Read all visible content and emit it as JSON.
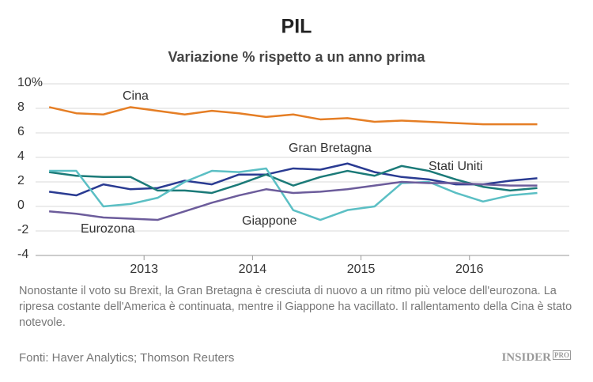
{
  "chart_data": {
    "type": "line",
    "title": "PIL",
    "subtitle": "Variazione % rispetto a un anno prima",
    "x": [
      2012.125,
      2012.375,
      2012.625,
      2012.875,
      2013.125,
      2013.375,
      2013.625,
      2013.875,
      2014.125,
      2014.375,
      2014.625,
      2014.875,
      2015.125,
      2015.375,
      2015.625,
      2015.875,
      2016.125,
      2016.375,
      2016.625
    ],
    "xlim": [
      2012,
      2016.92
    ],
    "xticks": [
      2013,
      2014,
      2015,
      2016
    ],
    "ylim": [
      -4,
      10
    ],
    "yticks": [
      -4,
      -2,
      0,
      2,
      4,
      6,
      8,
      {
        "value": 10,
        "label": "10%"
      }
    ],
    "grid": true,
    "series": [
      {
        "name": "Cina",
        "color": "#e57e25",
        "values": [
          8.1,
          7.6,
          7.5,
          8.1,
          7.8,
          7.5,
          7.8,
          7.6,
          7.3,
          7.5,
          7.1,
          7.2,
          6.9,
          7.0,
          6.9,
          6.8,
          6.7,
          6.7,
          6.7
        ]
      },
      {
        "name": "Gran Bretagna",
        "color": "#2a3b92",
        "values": [
          1.2,
          0.9,
          1.8,
          1.4,
          1.5,
          2.1,
          1.8,
          2.6,
          2.6,
          3.1,
          3.0,
          3.5,
          2.8,
          2.4,
          2.2,
          1.8,
          1.8,
          2.1,
          2.3
        ]
      },
      {
        "name": "Stati Uniti",
        "color": "#1b7a78",
        "values": [
          2.8,
          2.5,
          2.4,
          2.4,
          1.3,
          1.3,
          1.1,
          1.8,
          2.6,
          1.7,
          2.4,
          2.9,
          2.5,
          3.3,
          2.9,
          2.2,
          1.6,
          1.3,
          1.5
        ]
      },
      {
        "name": "Giappone",
        "color": "#5bbfc4",
        "values": [
          2.9,
          2.9,
          0.0,
          0.2,
          0.7,
          2.0,
          2.9,
          2.8,
          3.1,
          -0.3,
          -1.1,
          -0.3,
          0.0,
          1.9,
          2.0,
          1.1,
          0.4,
          0.9,
          1.1
        ]
      },
      {
        "name": "Eurozona",
        "color": "#6c5c9b",
        "values": [
          -0.4,
          -0.6,
          -0.9,
          -1.0,
          -1.1,
          -0.4,
          0.3,
          0.9,
          1.4,
          1.1,
          1.2,
          1.4,
          1.7,
          2.0,
          1.9,
          1.9,
          1.8,
          1.7,
          1.7
        ]
      }
    ],
    "note": "Nonostante il voto su Brexit, la Gran Bretagna è cresciuta di nuovo a un ritmo più veloce dell'eurozona. La ripresa costante dell'America è continuata, mentre il Giappone ha vacillato. Il rallentamento della Cina è stato notevole.",
    "source": "Fonti:  Haver Analytics; Thomson Reuters",
    "logo": "INSIDER",
    "logo_tag": "PRO"
  }
}
